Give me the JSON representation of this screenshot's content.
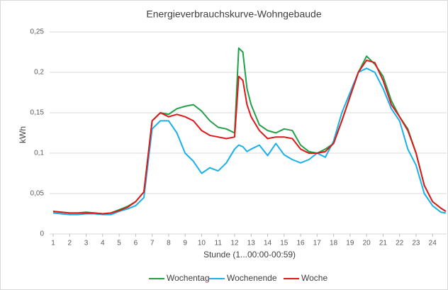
{
  "chart_data": {
    "type": "line",
    "title": "Energieverbrauchskurve-Wohngebaude",
    "x_label": "Stunde (1...00:00-00:59)",
    "y_label": "kWh",
    "x": [
      1,
      1.5,
      2,
      2.5,
      3,
      3.5,
      4,
      4.5,
      5,
      5.5,
      6,
      6.5,
      7,
      7.5,
      8,
      8.5,
      9,
      9.5,
      10,
      10.5,
      11,
      11.5,
      12,
      12.25,
      12.5,
      12.75,
      13,
      13.5,
      14,
      14.5,
      15,
      15.5,
      16,
      16.5,
      17,
      17.5,
      18,
      18.5,
      19,
      19.5,
      20,
      20.5,
      21,
      21.5,
      22,
      22.5,
      23,
      23.5,
      24,
      24.5,
      24.8
    ],
    "series": [
      {
        "name": "Wochentag",
        "color": "#21a04a",
        "values": [
          0.028,
          0.027,
          0.026,
          0.026,
          0.027,
          0.026,
          0.025,
          0.026,
          0.03,
          0.034,
          0.04,
          0.052,
          0.14,
          0.15,
          0.148,
          0.155,
          0.158,
          0.16,
          0.152,
          0.14,
          0.132,
          0.13,
          0.125,
          0.23,
          0.225,
          0.18,
          0.16,
          0.135,
          0.128,
          0.125,
          0.13,
          0.128,
          0.11,
          0.102,
          0.1,
          0.105,
          0.112,
          0.14,
          0.17,
          0.2,
          0.22,
          0.21,
          0.195,
          0.165,
          0.145,
          0.13,
          0.1,
          0.06,
          0.04,
          0.032,
          0.028
        ]
      },
      {
        "name": "Wochenende",
        "color": "#1ab0e8",
        "values": [
          0.026,
          0.025,
          0.024,
          0.024,
          0.025,
          0.025,
          0.024,
          0.024,
          0.028,
          0.031,
          0.035,
          0.045,
          0.13,
          0.14,
          0.14,
          0.125,
          0.1,
          0.09,
          0.075,
          0.082,
          0.078,
          0.088,
          0.105,
          0.11,
          0.108,
          0.102,
          0.105,
          0.11,
          0.097,
          0.112,
          0.098,
          0.092,
          0.088,
          0.092,
          0.1,
          0.095,
          0.115,
          0.15,
          0.175,
          0.2,
          0.205,
          0.2,
          0.18,
          0.155,
          0.14,
          0.105,
          0.085,
          0.05,
          0.035,
          0.027,
          0.026
        ]
      },
      {
        "name": "Woche",
        "color": "#e01818",
        "values": [
          0.028,
          0.027,
          0.026,
          0.026,
          0.026,
          0.026,
          0.025,
          0.026,
          0.029,
          0.033,
          0.04,
          0.052,
          0.14,
          0.15,
          0.145,
          0.148,
          0.145,
          0.14,
          0.128,
          0.122,
          0.12,
          0.118,
          0.12,
          0.195,
          0.19,
          0.16,
          0.145,
          0.128,
          0.118,
          0.12,
          0.12,
          0.118,
          0.105,
          0.1,
          0.1,
          0.102,
          0.112,
          0.14,
          0.17,
          0.2,
          0.215,
          0.212,
          0.19,
          0.16,
          0.145,
          0.128,
          0.1,
          0.06,
          0.04,
          0.032,
          0.028
        ]
      }
    ],
    "xlim": [
      1,
      24.85
    ],
    "xticks": [
      1,
      2,
      3,
      4,
      5,
      6,
      7,
      8,
      9,
      10,
      11,
      12,
      13,
      14,
      15,
      16,
      17,
      18,
      19,
      20,
      21,
      22,
      23,
      24
    ],
    "ylim": [
      0,
      0.25
    ],
    "yticks": [
      0,
      {
        "value": 0.05,
        "label": "0,05"
      },
      {
        "value": 0.1,
        "label": "0,1"
      },
      {
        "value": 0.15,
        "label": "0,15"
      },
      {
        "value": 0.2,
        "label": "0,2"
      },
      {
        "value": 0.25,
        "label": "0,25"
      }
    ],
    "grid": true,
    "legend": "bottom"
  }
}
